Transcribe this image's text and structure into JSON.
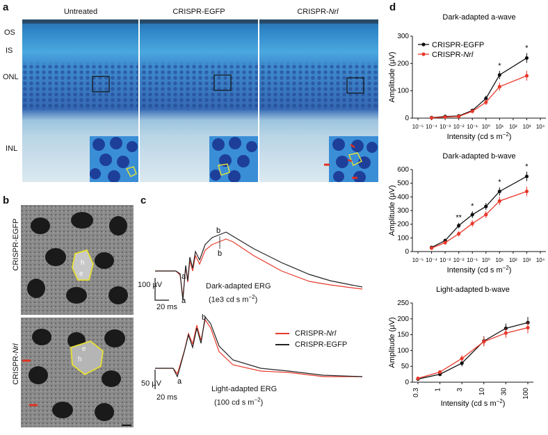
{
  "panel_a": {
    "label": "a",
    "columns": [
      "Untreated",
      "CRISPR-EGFP",
      "CRISPR-"
    ],
    "column3_italic": "Nrl",
    "layers": [
      "OS",
      "IS",
      "ONL",
      "INL"
    ]
  },
  "panel_b": {
    "label": "b",
    "row_labels": [
      "CRISPR-EGFP",
      "CRISPR-"
    ],
    "row2_italic": "Nrl",
    "marks": {
      "h": "h",
      "e": "e"
    }
  },
  "panel_c": {
    "label": "c",
    "dark_title": "Dark-adapted ERG",
    "dark_sub": "(1e3 cd s m",
    "light_title": "Light-adapted ERG",
    "light_sub": "(100 cd s m",
    "unit_sup": "−2",
    "close_paren": ")",
    "scale_dark_v": "100 µV",
    "scale_light_v": "50 µV",
    "scale_t": "20 ms",
    "legend": [
      "CRISPR-",
      "CRISPR-EGFP"
    ],
    "legend_italic": "Nrl",
    "wave_labels": {
      "a": "a",
      "b": "b"
    },
    "colors": {
      "nrl": "#e8392b",
      "egfp": "#222222"
    }
  },
  "panel_d": {
    "label": "d",
    "xlabel": "Intensity (cd s m",
    "ylabel": "Amplitude (µV)",
    "legend": [
      "CRISPR-EGFP",
      "CRISPR-"
    ],
    "legend_italic": "Nrl"
  },
  "chart_data": [
    {
      "type": "line",
      "title": "Dark-adapted a-wave",
      "x_scale": "log",
      "x_ticks": [
        "10⁻⁵",
        "10⁻⁴",
        "10⁻³",
        "10⁻²",
        "10⁻¹",
        "10⁰",
        "10¹",
        "10²",
        "10³",
        "10⁴"
      ],
      "x": [
        -4,
        -3,
        -2,
        -1,
        0,
        1,
        3
      ],
      "ylim": [
        0,
        300
      ],
      "y_ticks": [
        0,
        100,
        200,
        300
      ],
      "series": [
        {
          "name": "CRISPR-EGFP",
          "color": "#111111",
          "values": [
            2,
            6,
            8,
            28,
            72,
            158,
            220
          ],
          "err": [
            2,
            3,
            3,
            5,
            10,
            15,
            18
          ]
        },
        {
          "name": "CRISPR-Nrl",
          "color": "#e8392b",
          "values": [
            1,
            4,
            6,
            25,
            58,
            115,
            155
          ],
          "err": [
            2,
            3,
            3,
            5,
            10,
            15,
            18
          ]
        }
      ],
      "annotations": [
        {
          "x": 1,
          "text": "*"
        },
        {
          "x": 3,
          "text": "*"
        }
      ]
    },
    {
      "type": "line",
      "title": "Dark-adapted b-wave",
      "x_scale": "log",
      "x_ticks": [
        "10⁻⁵",
        "10⁻⁴",
        "10⁻³",
        "10⁻²",
        "10⁻¹",
        "10⁰",
        "10¹",
        "10²",
        "10³",
        "10⁴"
      ],
      "x": [
        -4,
        -3,
        -2,
        -1,
        0,
        1,
        3
      ],
      "ylim": [
        0,
        600
      ],
      "y_ticks": [
        0,
        100,
        200,
        300,
        400,
        500,
        600
      ],
      "series": [
        {
          "name": "CRISPR-EGFP",
          "color": "#111111",
          "values": [
            30,
            80,
            190,
            270,
            330,
            440,
            550
          ],
          "err": [
            10,
            15,
            20,
            25,
            25,
            30,
            35
          ]
        },
        {
          "name": "CRISPR-Nrl",
          "color": "#e8392b",
          "values": [
            25,
            65,
            130,
            205,
            270,
            370,
            440
          ],
          "err": [
            10,
            15,
            20,
            25,
            25,
            30,
            35
          ]
        }
      ],
      "annotations": [
        {
          "x": -2,
          "text": "**"
        },
        {
          "x": -1,
          "text": "*"
        },
        {
          "x": 1,
          "text": "*"
        },
        {
          "x": 3,
          "text": "*"
        }
      ]
    },
    {
      "type": "line",
      "title": "Light-adapted b-wave",
      "x_scale": "categorical",
      "x_ticks": [
        "0.3",
        "1",
        "3",
        "10",
        "30",
        "100"
      ],
      "ylim": [
        0,
        250
      ],
      "y_ticks": [
        0,
        50,
        100,
        150,
        200,
        250
      ],
      "series": [
        {
          "name": "CRISPR-EGFP",
          "color": "#111111",
          "values": [
            10,
            25,
            60,
            130,
            170,
            188
          ],
          "err": [
            3,
            5,
            10,
            15,
            15,
            18
          ]
        },
        {
          "name": "CRISPR-Nrl",
          "color": "#e8392b",
          "values": [
            12,
            32,
            75,
            128,
            155,
            172
          ],
          "err": [
            3,
            5,
            10,
            15,
            15,
            18
          ]
        }
      ]
    }
  ]
}
